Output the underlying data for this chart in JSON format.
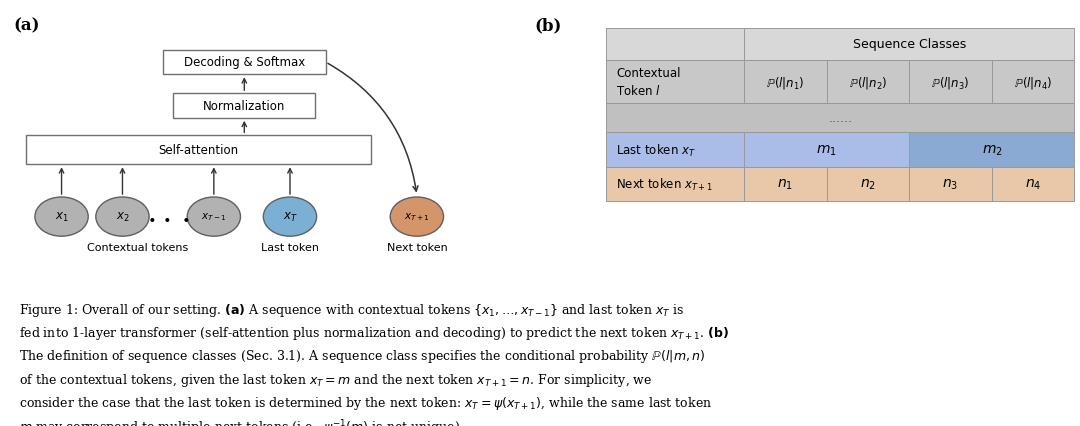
{
  "bg_color": "#ffffff",
  "panel_a_label": "(a)",
  "panel_b_label": "(b)",
  "box_decoding": "Decoding & Softmax",
  "box_norm": "Normalization",
  "box_self_attn": "Self-attention",
  "token_colors": [
    "#b2b2b2",
    "#b2b2b2",
    "#b2b2b2",
    "#7bafd4",
    "#d4956a"
  ],
  "label_contextual": "Contextual tokens",
  "label_last": "Last token",
  "label_next": "Next token",
  "table_seq_classes": "Sequence Classes",
  "table_dots_text": "......",
  "table_last_bg_light": "#aabce8",
  "table_last_bg_dark": "#8aaad0",
  "table_next_bg": "#e8c8a8",
  "table_header_bg": "#d0d0d0",
  "table_row1_bg": "#c4c4c4",
  "table_dots_bg": "#c0c0c0"
}
